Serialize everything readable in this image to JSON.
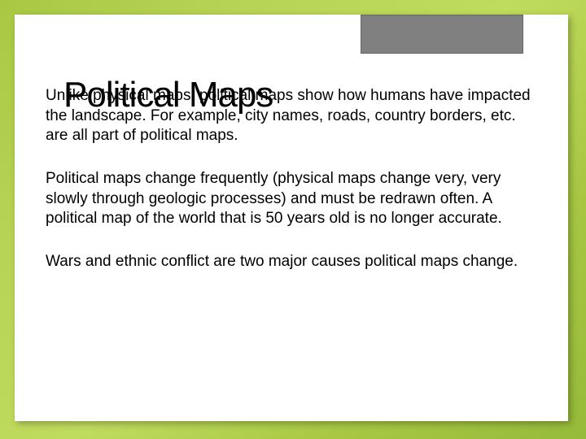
{
  "slide": {
    "title": "Political Maps",
    "paragraphs": [
      "Unlike physical maps, political maps show how humans have impacted the landscape.  For example, city names, roads, country borders, etc. are all part of political maps.",
      "Political maps change frequently (physical maps change very, very slowly through geologic processes) and must be redrawn often.  A political map of the world that is 50 years old is no longer accurate.",
      "Wars and ethnic conflict are two major causes political maps change."
    ]
  },
  "style": {
    "background_gradient": [
      "#a8c843",
      "#b8d456",
      "#c0dc5e",
      "#a8c843",
      "#96ba3a"
    ],
    "frame_background": "#ffffff",
    "gray_box_color": "#808080",
    "title_fontsize": 44,
    "body_fontsize": 19,
    "text_color": "#000000"
  }
}
